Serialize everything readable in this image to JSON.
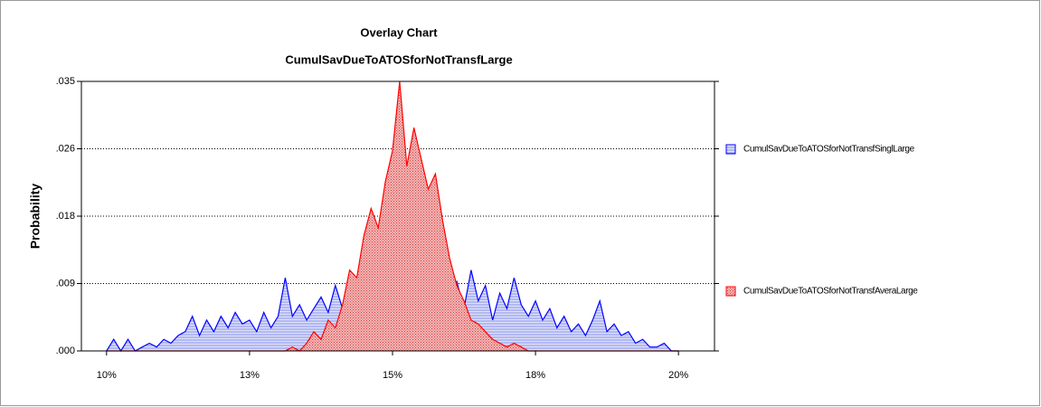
{
  "chart_data": {
    "type": "area",
    "title": "Overlay Chart",
    "subtitle": "CumulSavDueToATOSforNotTransfLarge",
    "y_label": "Probability",
    "x": [
      10,
      10.125,
      10.25,
      10.375,
      10.5,
      10.625,
      10.75,
      10.875,
      11,
      11.125,
      11.25,
      11.375,
      11.5,
      11.625,
      11.75,
      11.875,
      12,
      12.125,
      12.25,
      12.375,
      12.5,
      12.625,
      12.75,
      12.875,
      13,
      13.125,
      13.25,
      13.375,
      13.5,
      13.625,
      13.75,
      13.875,
      14,
      14.125,
      14.25,
      14.375,
      14.5,
      14.625,
      14.75,
      14.875,
      15,
      15.125,
      15.25,
      15.375,
      15.5,
      15.625,
      15.75,
      15.875,
      16,
      16.125,
      16.25,
      16.375,
      16.5,
      16.625,
      16.75,
      16.875,
      17,
      17.125,
      17.25,
      17.375,
      17.5,
      17.625,
      17.75,
      17.875,
      18,
      18.125,
      18.25,
      18.375,
      18.5,
      18.625,
      18.75,
      18.875,
      19,
      19.125,
      19.25,
      19.375,
      19.5,
      19.625,
      19.75,
      19.875,
      20
    ],
    "series": [
      {
        "name": "CumulSavDueToATOSforNotTransfSinglLarge",
        "color": "#0000ff",
        "fill": "#c8cdf5",
        "values": [
          0,
          0.0015,
          0,
          0.0015,
          0,
          0.0005,
          0.001,
          0.0005,
          0.0015,
          0.001,
          0.002,
          0.0025,
          0.0045,
          0.002,
          0.004,
          0.0025,
          0.0045,
          0.003,
          0.005,
          0.0035,
          0.004,
          0.0025,
          0.005,
          0.003,
          0.0045,
          0.0095,
          0.0045,
          0.006,
          0.004,
          0.0055,
          0.007,
          0.005,
          0.0085,
          0.0055,
          0.009,
          0.006,
          0.0075,
          0.005,
          0.006,
          0.0045,
          0.0055,
          0.004,
          0.006,
          0.0045,
          0.0055,
          0.0035,
          0.0065,
          0.0085,
          0.0075,
          0.009,
          0.0055,
          0.0105,
          0.0065,
          0.0085,
          0.004,
          0.0075,
          0.0055,
          0.0095,
          0.006,
          0.0045,
          0.0065,
          0.004,
          0.0055,
          0.003,
          0.0045,
          0.0025,
          0.0035,
          0.002,
          0.004,
          0.0065,
          0.0025,
          0.0035,
          0.002,
          0.0025,
          0.001,
          0.0015,
          0.0005,
          0.0005,
          0.001,
          0,
          0
        ]
      },
      {
        "name": "CumulSavDueToATOSforNotTransfAveraLarge",
        "color": "#ff0000",
        "fill": "#f0a0a0",
        "values": [
          0,
          0,
          0,
          0,
          0,
          0,
          0,
          0,
          0,
          0,
          0,
          0,
          0,
          0,
          0,
          0,
          0,
          0,
          0,
          0,
          0,
          0,
          0,
          0,
          0,
          0,
          0.0005,
          0,
          0.001,
          0.0025,
          0.0015,
          0.004,
          0.003,
          0.006,
          0.0105,
          0.0095,
          0.015,
          0.0185,
          0.016,
          0.022,
          0.026,
          0.035,
          0.024,
          0.029,
          0.025,
          0.021,
          0.023,
          0.017,
          0.012,
          0.0085,
          0.0065,
          0.004,
          0.0035,
          0.0025,
          0.0015,
          0.001,
          0.0005,
          0.001,
          0.0005,
          0,
          0,
          0,
          0,
          0,
          0,
          0,
          0,
          0,
          0,
          0,
          0,
          0,
          0,
          0,
          0,
          0,
          0,
          0,
          0,
          0,
          0
        ]
      }
    ],
    "xlim": [
      9.56,
      20.63
    ],
    "xticks": [
      {
        "value": 10,
        "label": "10%"
      },
      {
        "value": 12.5,
        "label": "13%"
      },
      {
        "value": 15,
        "label": "15%"
      },
      {
        "value": 17.5,
        "label": "18%"
      },
      {
        "value": 20,
        "label": "20%"
      }
    ],
    "ylim": [
      0,
      0.035
    ],
    "yticks": [
      {
        "value": 0,
        "label": ".000"
      },
      {
        "value": 0.00875,
        "label": ".009"
      },
      {
        "value": 0.0175,
        "label": ".018"
      },
      {
        "value": 0.02625,
        "label": ".026"
      },
      {
        "value": 0.035,
        "label": ".035"
      }
    ],
    "grid": true,
    "legend": "right"
  }
}
